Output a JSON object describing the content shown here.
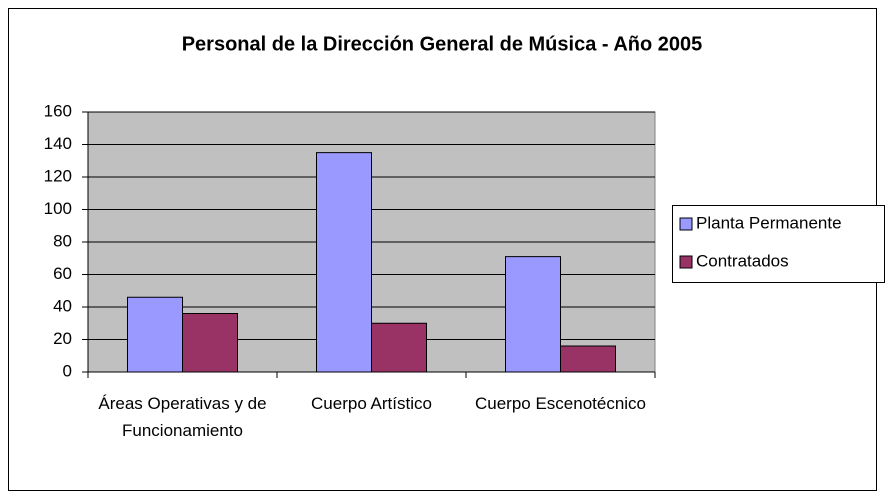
{
  "chart_data": {
    "type": "bar",
    "title": "Personal de la Dirección General de Música - Año 2005",
    "categories": [
      "Áreas Operativas y de Funcionamiento",
      "Cuerpo Artístico",
      "Cuerpo Escenotécnico"
    ],
    "series": [
      {
        "name": "Planta Permanente",
        "color": "#9999ff",
        "values": [
          46,
          135,
          71
        ]
      },
      {
        "name": "Contratados",
        "color": "#993366",
        "values": [
          36,
          30,
          16
        ]
      }
    ],
    "ylim": [
      0,
      160
    ],
    "yticks": [
      0,
      20,
      40,
      60,
      80,
      100,
      120,
      140,
      160
    ],
    "grid": true,
    "legend": "right"
  }
}
